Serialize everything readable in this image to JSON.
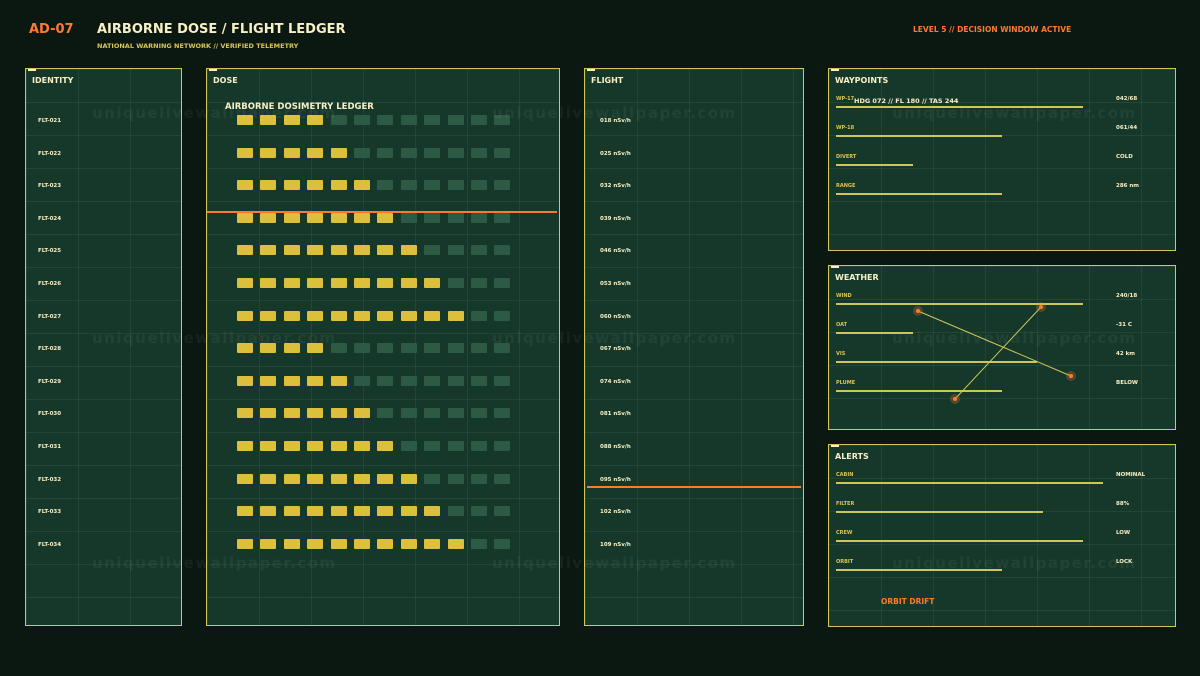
{
  "header": {
    "code": "AD-07",
    "title": "AIRBORNE DOSE / FLIGHT LEDGER",
    "subtitle": "NATIONAL WARNING NETWORK // VERIFIED TELEMETRY",
    "status": "LEVEL 5 // DECISION WINDOW ACTIVE"
  },
  "panels": {
    "identity": "IDENTITY",
    "dose": "DOSE",
    "flight": "FLIGHT",
    "waypoints": "WAYPOINTS",
    "weather": "WEATHER",
    "alerts": "ALERTS"
  },
  "dose_ledger_title": "AIRBORNE DOSIMETRY LEDGER",
  "flights": [
    {
      "id": "FLT-021",
      "dose_level": 4,
      "rate": "018 nSv/h"
    },
    {
      "id": "FLT-022",
      "dose_level": 5,
      "rate": "025 nSv/h"
    },
    {
      "id": "FLT-023",
      "dose_level": 6,
      "rate": "032 nSv/h"
    },
    {
      "id": "FLT-024",
      "dose_level": 7,
      "rate": "039 nSv/h"
    },
    {
      "id": "FLT-025",
      "dose_level": 8,
      "rate": "046 nSv/h"
    },
    {
      "id": "FLT-026",
      "dose_level": 9,
      "rate": "053 nSv/h"
    },
    {
      "id": "FLT-027",
      "dose_level": 10,
      "rate": "060 nSv/h"
    },
    {
      "id": "FLT-028",
      "dose_level": 4,
      "rate": "067 nSv/h"
    },
    {
      "id": "FLT-029",
      "dose_level": 5,
      "rate": "074 nSv/h"
    },
    {
      "id": "FLT-030",
      "dose_level": 6,
      "rate": "081 nSv/h"
    },
    {
      "id": "FLT-031",
      "dose_level": 7,
      "rate": "088 nSv/h"
    },
    {
      "id": "FLT-032",
      "dose_level": 8,
      "rate": "095 nSv/h"
    },
    {
      "id": "FLT-033",
      "dose_level": 9,
      "rate": "102 nSv/h"
    },
    {
      "id": "FLT-034",
      "dose_level": 10,
      "rate": "109 nSv/h"
    }
  ],
  "dose_cells_total": 12,
  "waypoints": {
    "inline": "HDG 072 // FL 180 // TAS 244",
    "rows": [
      {
        "label": "WP-17",
        "value": "042/68",
        "fill": 0.86
      },
      {
        "label": "WP-18",
        "value": "061/44",
        "fill": 0.58
      },
      {
        "label": "DIVERT",
        "value": "COLD",
        "fill": 0.27
      },
      {
        "label": "RANGE",
        "value": "286 nm",
        "fill": 0.58
      }
    ]
  },
  "weather": {
    "rows": [
      {
        "label": "WIND",
        "value": "240/18",
        "fill": 0.86
      },
      {
        "label": "OAT",
        "value": "-31 C",
        "fill": 0.27
      },
      {
        "label": "VIS",
        "value": "42 km",
        "fill": 0.7
      },
      {
        "label": "PLUME",
        "value": "BELOW",
        "fill": 0.58
      }
    ]
  },
  "alerts": {
    "rows": [
      {
        "label": "CABIN",
        "value": "NOMINAL",
        "fill": 0.93
      },
      {
        "label": "FILTER",
        "value": "88%",
        "fill": 0.72
      },
      {
        "label": "CREW",
        "value": "LOW",
        "fill": 0.86
      },
      {
        "label": "ORBIT",
        "value": "LOCK",
        "fill": 0.58
      }
    ],
    "orbit_drift": "ORBIT DRIFT"
  },
  "watermark": "uniquelivewallpaper.com",
  "colors": {
    "accent": "#ff7a2e",
    "dose_on": "#dcbf3a",
    "dose_off": "#2d5a44",
    "panel_border": "#cfc65a",
    "panel_bg": "#16382a"
  }
}
